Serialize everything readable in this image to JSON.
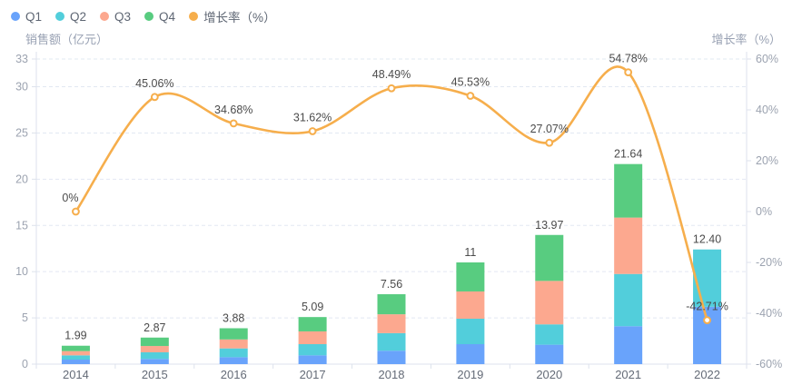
{
  "legend": {
    "items": [
      {
        "label": "Q1",
        "color": "#69a3fb"
      },
      {
        "label": "Q2",
        "color": "#52cedb"
      },
      {
        "label": "Q3",
        "color": "#fca88f"
      },
      {
        "label": "Q4",
        "color": "#58cc80"
      },
      {
        "label": "增长率（%）",
        "color": "#f6ae4c"
      }
    ]
  },
  "chart_data": {
    "type": "bar",
    "subtype": "stacked-bars-with-line-overlay",
    "categories": [
      "2014",
      "2015",
      "2016",
      "2017",
      "2018",
      "2019",
      "2020",
      "2021",
      "2022"
    ],
    "series": [
      {
        "name": "Q1",
        "type": "bar",
        "stack": true,
        "axis": "left",
        "color": "#69a3fb",
        "values": [
          0.49,
          0.56,
          0.75,
          0.95,
          1.45,
          2.16,
          2.1,
          4.1,
          6.2
        ]
      },
      {
        "name": "Q2",
        "type": "bar",
        "stack": true,
        "axis": "left",
        "color": "#52cedb",
        "values": [
          0.46,
          0.72,
          0.95,
          1.21,
          1.9,
          2.75,
          2.2,
          5.65,
          6.2
        ]
      },
      {
        "name": "Q3",
        "type": "bar",
        "stack": true,
        "axis": "left",
        "color": "#fca88f",
        "values": [
          0.46,
          0.68,
          0.97,
          1.38,
          2.04,
          2.95,
          4.7,
          6.1,
          0
        ]
      },
      {
        "name": "Q4",
        "type": "bar",
        "stack": true,
        "axis": "left",
        "color": "#58cc80",
        "values": [
          0.58,
          0.91,
          1.21,
          1.55,
          2.17,
          3.14,
          4.97,
          5.79,
          0
        ]
      },
      {
        "name": "增长率（%）",
        "type": "line",
        "smooth": true,
        "axis": "right",
        "color": "#f6ae4c",
        "values": [
          0,
          45.06,
          34.68,
          31.62,
          48.49,
          45.53,
          27.07,
          54.78,
          -42.71
        ]
      }
    ],
    "bar_total_labels": [
      "1.99",
      "2.87",
      "3.88",
      "5.09",
      "7.56",
      "11",
      "13.97",
      "21.64",
      "12.40"
    ],
    "line_point_labels": [
      "0%",
      "45.06%",
      "34.68%",
      "31.62%",
      "48.49%",
      "45.53%",
      "27.07%",
      "54.78%",
      "-42.71%"
    ],
    "left_axis": {
      "title": "销售额（亿元）",
      "min": 0,
      "max": 33,
      "ticks": [
        0,
        5,
        10,
        15,
        20,
        25,
        30,
        33
      ]
    },
    "right_axis": {
      "title": "增长率（%）",
      "min": -60,
      "max": 60,
      "ticks": [
        60,
        40,
        20,
        0,
        -20,
        -40,
        -60
      ],
      "tick_labels": [
        "60%",
        "40%",
        "20%",
        "0%",
        "-20%",
        "-40%",
        "-60%"
      ]
    },
    "grid": {
      "horizontal": true,
      "style": "dashed",
      "color": "#e2e8f2"
    },
    "legend_position": "top-left",
    "title": ""
  },
  "style_colors": {
    "grid_line": "#e2e8f2",
    "axis_line": "#dde2ec",
    "tick_text": "#9ca3b0",
    "category_text": "#646b77",
    "value_label_text": "#4b4b4b",
    "marker_fill": "#ffffff"
  }
}
